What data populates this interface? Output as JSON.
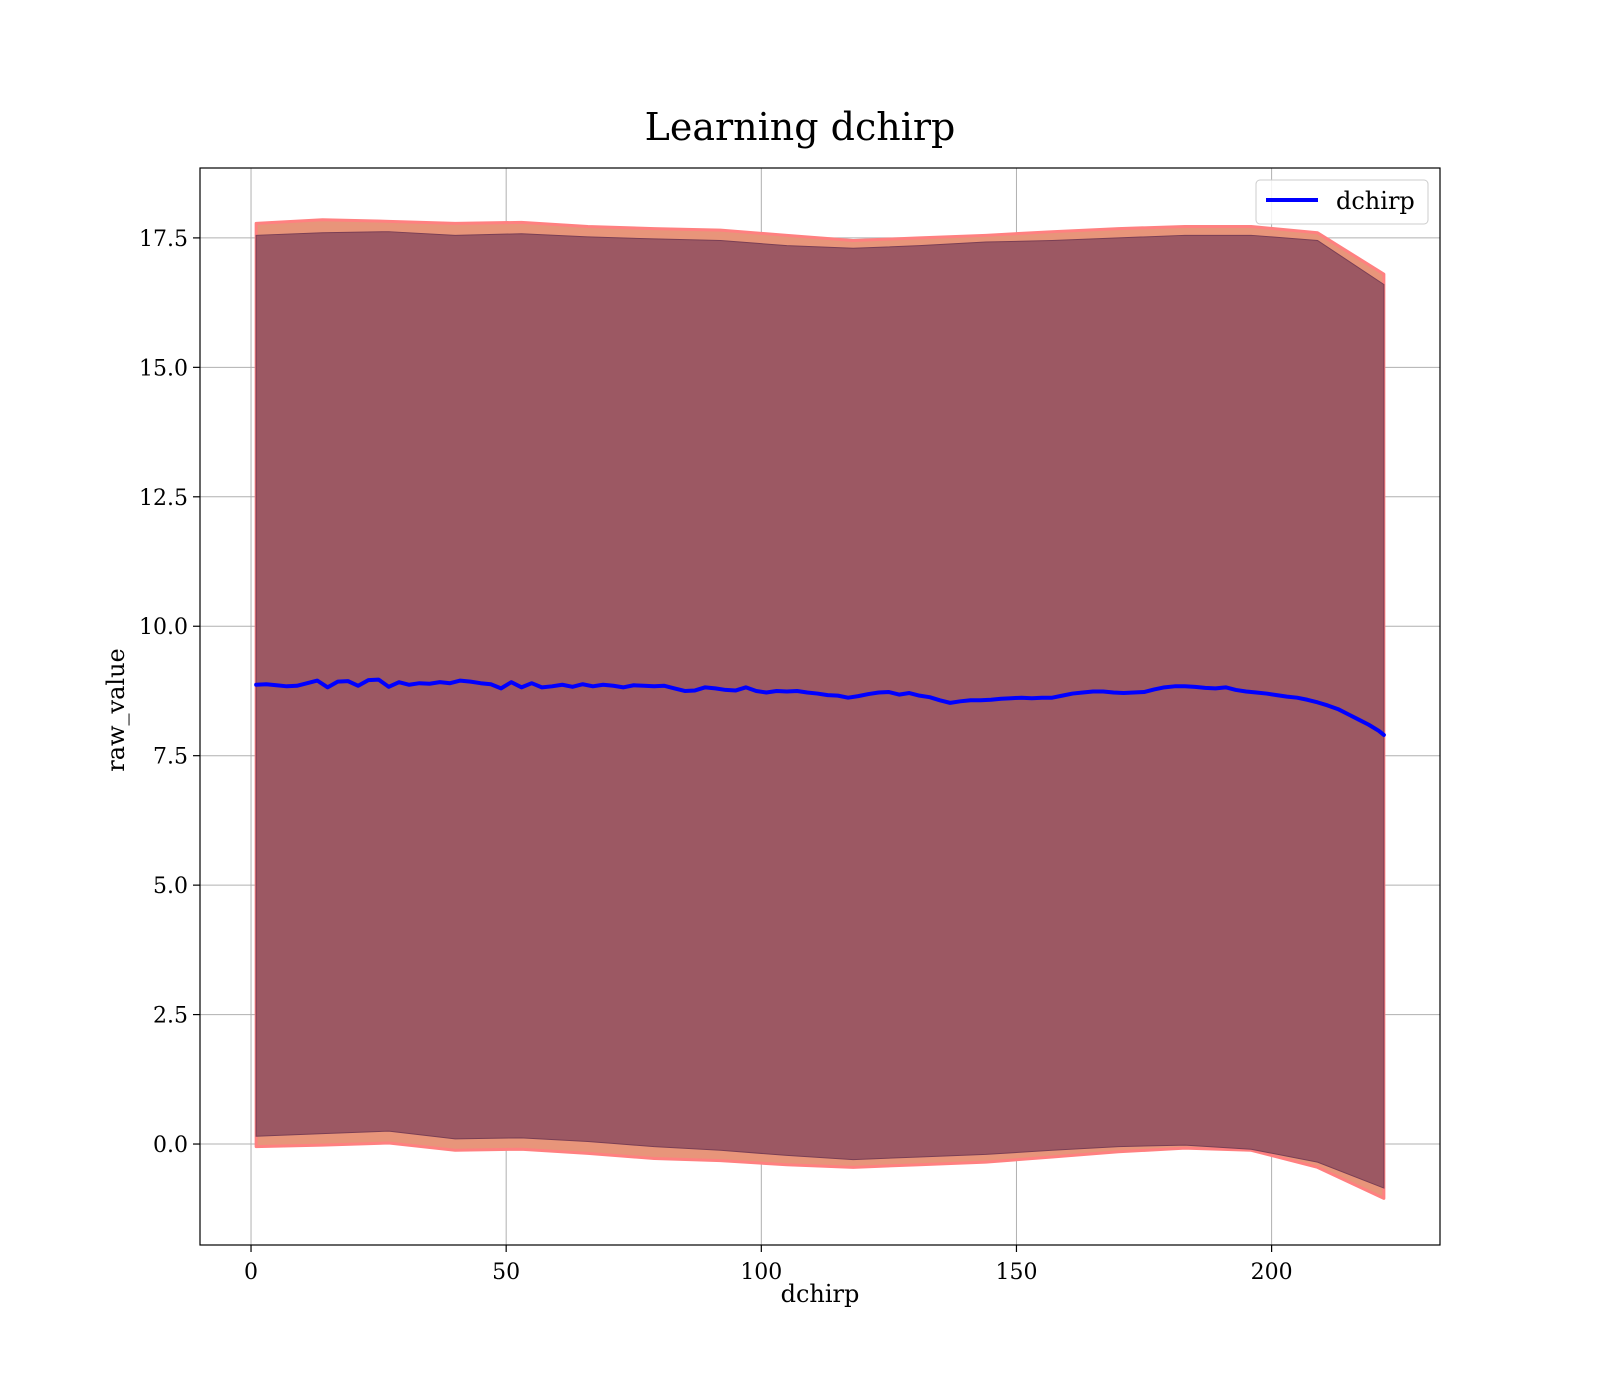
{
  "chart_data": {
    "type": "line",
    "title": "Learning dchirp",
    "xlabel": "dchirp",
    "ylabel": "raw_value",
    "xlim": [
      -10,
      233
    ],
    "ylim": [
      -1.95,
      18.85
    ],
    "xticks": [
      0,
      50,
      100,
      150,
      200
    ],
    "yticks": [
      0.0,
      2.5,
      5.0,
      7.5,
      10.0,
      12.5,
      15.0,
      17.5
    ],
    "grid": true,
    "legend_position": "top-right",
    "colors": {
      "mean_line": "#0000ff",
      "inner_band": "#8b4a5e",
      "outer_band": "#e8957a",
      "outer_edge": "#ff8080"
    },
    "series": [
      {
        "name": "dchirp",
        "role": "mean",
        "x": [
          1,
          3,
          5,
          7,
          9,
          11,
          13,
          15,
          17,
          19,
          21,
          23,
          25,
          27,
          29,
          31,
          33,
          35,
          37,
          39,
          41,
          43,
          45,
          47,
          49,
          51,
          53,
          55,
          57,
          59,
          61,
          63,
          65,
          67,
          69,
          71,
          73,
          75,
          77,
          79,
          81,
          83,
          85,
          87,
          89,
          91,
          93,
          95,
          97,
          99,
          101,
          103,
          105,
          107,
          109,
          111,
          113,
          115,
          117,
          119,
          121,
          123,
          125,
          127,
          129,
          131,
          133,
          135,
          137,
          139,
          141,
          143,
          145,
          147,
          149,
          151,
          153,
          155,
          157,
          159,
          161,
          163,
          165,
          167,
          169,
          171,
          173,
          175,
          177,
          179,
          181,
          183,
          185,
          187,
          189,
          191,
          193,
          195,
          197,
          199,
          201,
          203,
          205,
          207,
          209,
          211,
          213,
          215,
          217,
          219,
          221,
          222
        ],
        "values": [
          8.87,
          8.88,
          8.86,
          8.84,
          8.85,
          8.9,
          8.95,
          8.82,
          8.93,
          8.94,
          8.85,
          8.96,
          8.97,
          8.83,
          8.92,
          8.87,
          8.9,
          8.89,
          8.92,
          8.9,
          8.95,
          8.93,
          8.9,
          8.88,
          8.8,
          8.92,
          8.82,
          8.9,
          8.82,
          8.84,
          8.87,
          8.83,
          8.88,
          8.84,
          8.87,
          8.85,
          8.82,
          8.86,
          8.85,
          8.84,
          8.85,
          8.8,
          8.75,
          8.76,
          8.82,
          8.8,
          8.77,
          8.76,
          8.82,
          8.75,
          8.72,
          8.75,
          8.74,
          8.75,
          8.72,
          8.7,
          8.67,
          8.66,
          8.62,
          8.65,
          8.69,
          8.72,
          8.73,
          8.68,
          8.71,
          8.66,
          8.63,
          8.57,
          8.52,
          8.55,
          8.57,
          8.57,
          8.58,
          8.6,
          8.61,
          8.62,
          8.61,
          8.62,
          8.62,
          8.66,
          8.7,
          8.72,
          8.74,
          8.74,
          8.72,
          8.71,
          8.72,
          8.73,
          8.78,
          8.82,
          8.84,
          8.84,
          8.83,
          8.81,
          8.8,
          8.82,
          8.77,
          8.74,
          8.72,
          8.7,
          8.67,
          8.64,
          8.62,
          8.58,
          8.53,
          8.47,
          8.4,
          8.3,
          8.2,
          8.1,
          7.98,
          7.9
        ]
      }
    ],
    "bands": [
      {
        "role": "inner",
        "x_from": 1,
        "x_to": 222,
        "upper": [
          17.55,
          17.6,
          17.62,
          17.55,
          17.58,
          17.52,
          17.48,
          17.45,
          17.35,
          17.3,
          17.35,
          17.42,
          17.45,
          17.5,
          17.55,
          17.55,
          17.45,
          16.6
        ],
        "lower": [
          0.15,
          0.2,
          0.25,
          0.1,
          0.12,
          0.05,
          -0.05,
          -0.12,
          -0.22,
          -0.3,
          -0.25,
          -0.2,
          -0.12,
          -0.05,
          -0.02,
          -0.1,
          -0.35,
          -0.85
        ]
      },
      {
        "role": "outer",
        "x_from": 1,
        "x_to": 222,
        "upper": [
          17.78,
          17.85,
          17.82,
          17.78,
          17.8,
          17.72,
          17.68,
          17.65,
          17.55,
          17.45,
          17.5,
          17.55,
          17.62,
          17.68,
          17.72,
          17.72,
          17.6,
          16.8
        ],
        "lower": [
          -0.05,
          -0.02,
          0.02,
          -0.12,
          -0.1,
          -0.18,
          -0.28,
          -0.32,
          -0.4,
          -0.45,
          -0.4,
          -0.35,
          -0.25,
          -0.15,
          -0.08,
          -0.12,
          -0.45,
          -1.05
        ]
      }
    ]
  }
}
